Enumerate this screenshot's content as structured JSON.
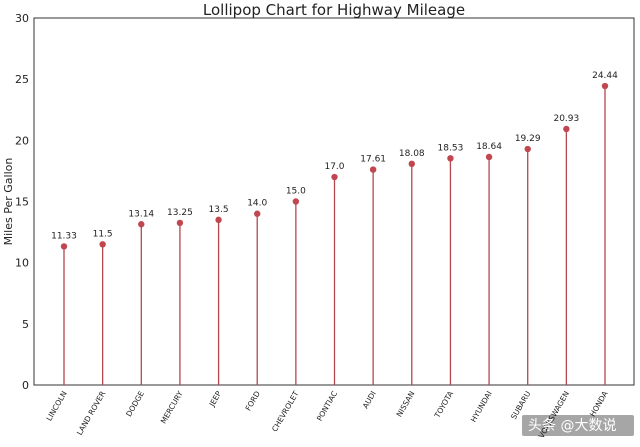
{
  "chart_data": {
    "type": "lollipop",
    "title": "Lollipop Chart for Highway Mileage",
    "xlabel": "",
    "ylabel": "Miles Per Gallon",
    "ylim": [
      0,
      30
    ],
    "yticks": [
      0,
      5,
      10,
      15,
      20,
      25,
      30
    ],
    "categories": [
      "LINCOLN",
      "LAND ROVER",
      "DODGE",
      "MERCURY",
      "JEEP",
      "FORD",
      "CHEVROLET",
      "PONTIAC",
      "AUDI",
      "NISSAN",
      "TOYOTA",
      "HYUNDAI",
      "SUBARU",
      "VOLKSWAGEN",
      "HONDA"
    ],
    "values": [
      11.33,
      11.5,
      13.14,
      13.25,
      13.5,
      14.0,
      15.0,
      17.0,
      17.61,
      18.08,
      18.53,
      18.64,
      19.29,
      20.93,
      24.44
    ],
    "value_labels": [
      "11.33",
      "11.5",
      "13.14",
      "13.25",
      "13.5",
      "14.0",
      "15.0",
      "17.0",
      "17.61",
      "18.08",
      "18.53",
      "18.64",
      "19.29",
      "20.93",
      "24.44"
    ],
    "grid": false,
    "colors": {
      "stem": "#b5474f",
      "dot": "#c0464f"
    }
  },
  "watermark": "头条 @大数说"
}
